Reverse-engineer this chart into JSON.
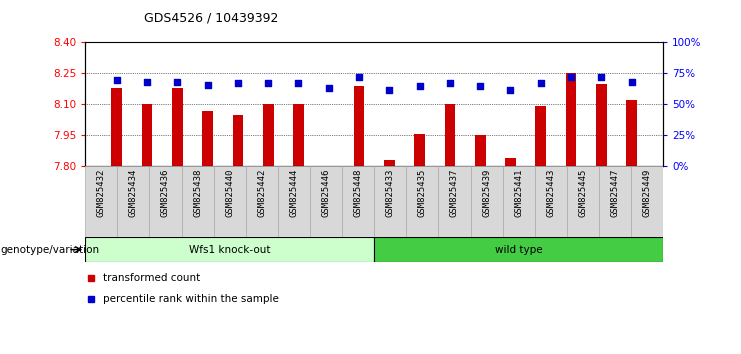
{
  "title": "GDS4526 / 10439392",
  "samples": [
    "GSM825432",
    "GSM825434",
    "GSM825436",
    "GSM825438",
    "GSM825440",
    "GSM825442",
    "GSM825444",
    "GSM825446",
    "GSM825448",
    "GSM825433",
    "GSM825435",
    "GSM825437",
    "GSM825439",
    "GSM825441",
    "GSM825443",
    "GSM825445",
    "GSM825447",
    "GSM825449"
  ],
  "transformed_count": [
    8.18,
    8.1,
    8.18,
    8.07,
    8.05,
    8.1,
    8.1,
    7.8,
    8.19,
    7.83,
    7.955,
    8.1,
    7.95,
    7.84,
    8.09,
    8.25,
    8.2,
    8.12
  ],
  "percentile_rank": [
    70,
    68,
    68,
    66,
    67,
    67,
    67,
    63,
    72,
    62,
    65,
    67,
    65,
    62,
    67,
    72,
    72,
    68
  ],
  "group1_label": "Wfs1 knock-out",
  "group2_label": "wild type",
  "group1_count": 9,
  "group2_count": 9,
  "ymin": 7.8,
  "ymax": 8.4,
  "yticks": [
    7.8,
    7.95,
    8.1,
    8.25,
    8.4
  ],
  "right_yticks": [
    0,
    25,
    50,
    75,
    100
  ],
  "right_yticklabels": [
    "0%",
    "25%",
    "50%",
    "75%",
    "100%"
  ],
  "bar_color": "#cc0000",
  "dot_color": "#0000cc",
  "group1_bg": "#ccffcc",
  "group2_bg": "#44cc44",
  "legend_label_bar": "transformed count",
  "legend_label_dot": "percentile rank within the sample",
  "xlabel_left": "genotype/variation",
  "bar_width": 0.35
}
